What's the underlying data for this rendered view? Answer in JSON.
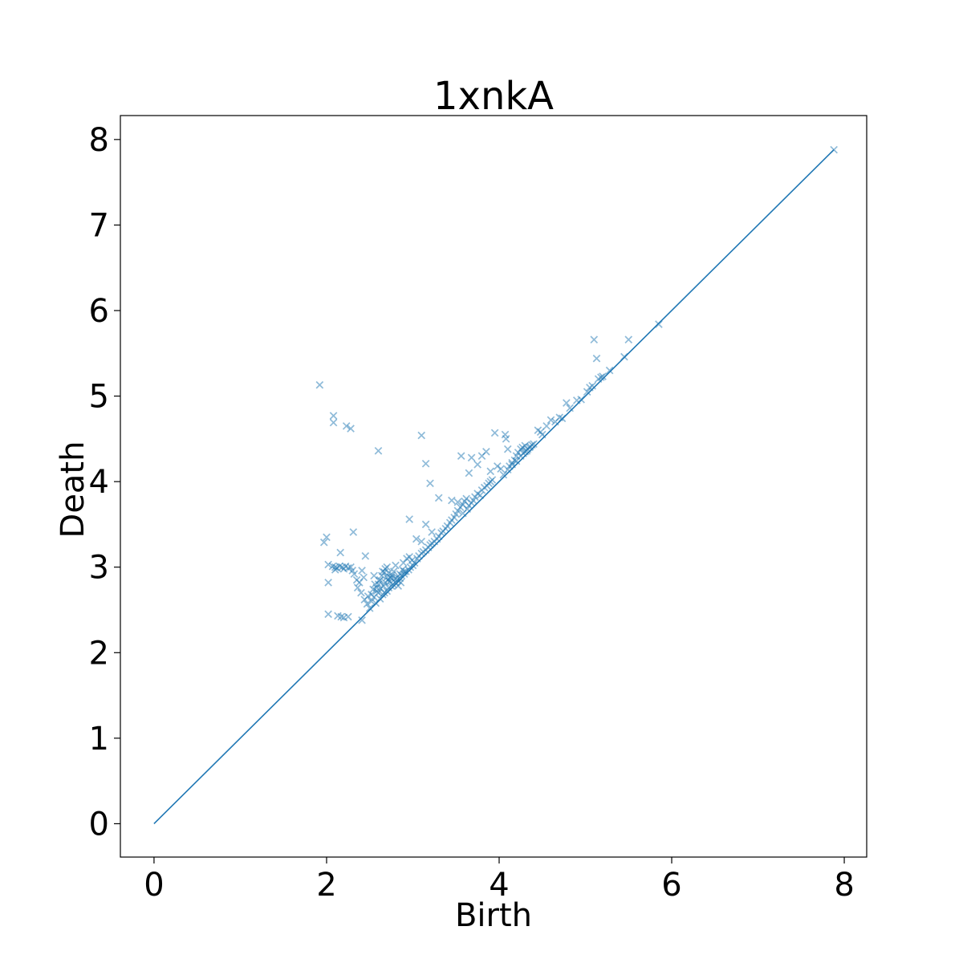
{
  "chart_data": {
    "type": "scatter",
    "title": "1xnkA",
    "xlabel": "Birth",
    "ylabel": "Death",
    "xlim": [
      -0.39,
      8.26
    ],
    "ylim": [
      -0.39,
      8.28
    ],
    "x_ticks": [
      0,
      2,
      4,
      6,
      8
    ],
    "y_ticks": [
      0,
      1,
      2,
      3,
      4,
      5,
      6,
      7,
      8
    ],
    "grid": false,
    "legend": "none",
    "colors": {
      "series": "#1f77b4",
      "axes": "#000000",
      "background": "#ffffff"
    },
    "marker": "x",
    "marker_alpha": 0.5,
    "diagonal": {
      "from": [
        0,
        0
      ],
      "to": [
        7.88,
        7.88
      ]
    },
    "points": [
      [
        1.92,
        5.13
      ],
      [
        2.08,
        4.77
      ],
      [
        2.08,
        4.69
      ],
      [
        2.23,
        4.65
      ],
      [
        2.28,
        4.62
      ],
      [
        2.6,
        4.36
      ],
      [
        2.0,
        3.35
      ],
      [
        1.97,
        3.29
      ],
      [
        2.31,
        3.41
      ],
      [
        2.16,
        3.17
      ],
      [
        2.45,
        3.13
      ],
      [
        2.02,
        3.03
      ],
      [
        2.07,
        3.01
      ],
      [
        2.1,
        3.0
      ],
      [
        2.12,
        2.99
      ],
      [
        2.15,
        3.01
      ],
      [
        2.18,
        3.0
      ],
      [
        2.2,
        2.98
      ],
      [
        2.22,
        3.01
      ],
      [
        2.25,
        2.99
      ],
      [
        2.28,
        3.0
      ],
      [
        2.3,
        2.96
      ],
      [
        2.1,
        2.97
      ],
      [
        2.32,
        2.92
      ],
      [
        2.35,
        2.85
      ],
      [
        2.38,
        2.82
      ],
      [
        2.36,
        2.76
      ],
      [
        2.4,
        2.7
      ],
      [
        2.44,
        2.62
      ],
      [
        2.47,
        2.57
      ],
      [
        2.41,
        2.96
      ],
      [
        2.43,
        2.88
      ],
      [
        2.02,
        2.82
      ],
      [
        2.02,
        2.45
      ],
      [
        2.13,
        2.43
      ],
      [
        2.17,
        2.42
      ],
      [
        2.2,
        2.41
      ],
      [
        2.25,
        2.42
      ],
      [
        2.41,
        2.38
      ],
      [
        2.5,
        2.52
      ],
      [
        2.52,
        2.6
      ],
      [
        2.55,
        2.65
      ],
      [
        2.58,
        2.72
      ],
      [
        2.6,
        2.8
      ],
      [
        2.62,
        2.85
      ],
      [
        2.55,
        2.9
      ],
      [
        2.65,
        2.95
      ],
      [
        2.68,
        2.98
      ],
      [
        2.7,
        3.0
      ],
      [
        2.72,
        2.93
      ],
      [
        2.75,
        2.87
      ],
      [
        2.78,
        2.95
      ],
      [
        2.8,
        3.02
      ],
      [
        2.82,
        2.88
      ],
      [
        2.85,
        2.92
      ],
      [
        2.88,
        2.97
      ],
      [
        2.9,
        2.95
      ],
      [
        2.57,
        2.58
      ],
      [
        2.62,
        2.63
      ],
      [
        2.65,
        2.68
      ],
      [
        2.67,
        2.7
      ],
      [
        2.7,
        2.72
      ],
      [
        2.72,
        2.76
      ],
      [
        2.75,
        2.78
      ],
      [
        2.77,
        2.8
      ],
      [
        2.8,
        2.82
      ],
      [
        2.82,
        2.85
      ],
      [
        2.85,
        2.87
      ],
      [
        2.87,
        2.9
      ],
      [
        2.9,
        2.92
      ],
      [
        2.92,
        2.95
      ],
      [
        2.95,
        2.97
      ],
      [
        2.97,
        3.0
      ],
      [
        3.0,
        3.02
      ],
      [
        3.02,
        3.05
      ],
      [
        2.6,
        2.7
      ],
      [
        2.63,
        2.75
      ],
      [
        2.66,
        2.78
      ],
      [
        2.68,
        2.82
      ],
      [
        2.71,
        2.85
      ],
      [
        2.74,
        2.88
      ],
      [
        2.58,
        2.76
      ],
      [
        2.61,
        2.84
      ],
      [
        2.64,
        2.9
      ],
      [
        2.67,
        2.94
      ],
      [
        2.7,
        2.88
      ],
      [
        2.73,
        2.83
      ],
      [
        2.76,
        2.91
      ],
      [
        2.79,
        2.86
      ],
      [
        2.83,
        2.78
      ],
      [
        2.86,
        2.82
      ],
      [
        2.89,
        3.05
      ],
      [
        2.93,
        3.1
      ],
      [
        2.96,
        3.12
      ],
      [
        2.99,
        3.08
      ],
      [
        2.52,
        2.68
      ],
      [
        2.54,
        2.74
      ],
      [
        2.56,
        2.8
      ],
      [
        2.48,
        2.66
      ],
      [
        3.05,
        3.1
      ],
      [
        3.07,
        3.13
      ],
      [
        3.1,
        3.16
      ],
      [
        3.12,
        3.18
      ],
      [
        3.15,
        3.2
      ],
      [
        3.18,
        3.23
      ],
      [
        3.2,
        3.26
      ],
      [
        3.22,
        3.28
      ],
      [
        3.25,
        3.3
      ],
      [
        3.28,
        3.33
      ],
      [
        3.3,
        3.36
      ],
      [
        3.33,
        3.4
      ],
      [
        3.35,
        3.42
      ],
      [
        3.38,
        3.45
      ],
      [
        3.4,
        3.48
      ],
      [
        3.43,
        3.52
      ],
      [
        3.45,
        3.55
      ],
      [
        3.48,
        3.58
      ],
      [
        3.04,
        3.33
      ],
      [
        3.1,
        3.3
      ],
      [
        3.15,
        3.5
      ],
      [
        3.22,
        3.41
      ],
      [
        2.96,
        3.56
      ],
      [
        3.1,
        4.54
      ],
      [
        3.15,
        4.21
      ],
      [
        3.2,
        3.98
      ],
      [
        3.3,
        3.81
      ],
      [
        3.5,
        3.62
      ],
      [
        3.52,
        3.66
      ],
      [
        3.55,
        3.7
      ],
      [
        3.58,
        3.73
      ],
      [
        3.6,
        3.77
      ],
      [
        3.62,
        3.8
      ],
      [
        3.65,
        3.72
      ],
      [
        3.68,
        3.75
      ],
      [
        3.7,
        3.78
      ],
      [
        3.72,
        3.82
      ],
      [
        3.75,
        3.86
      ],
      [
        3.78,
        3.84
      ],
      [
        3.8,
        3.9
      ],
      [
        3.83,
        3.93
      ],
      [
        3.86,
        3.95
      ],
      [
        3.88,
        3.98
      ],
      [
        3.9,
        4.0
      ],
      [
        3.92,
        4.02
      ],
      [
        3.45,
        3.78
      ],
      [
        3.52,
        3.76
      ],
      [
        3.58,
        3.63
      ],
      [
        3.63,
        3.68
      ],
      [
        3.56,
        4.3
      ],
      [
        3.65,
        4.1
      ],
      [
        3.68,
        4.28
      ],
      [
        3.75,
        4.2
      ],
      [
        3.8,
        4.3
      ],
      [
        3.85,
        4.35
      ],
      [
        3.9,
        4.12
      ],
      [
        3.95,
        4.57
      ],
      [
        3.98,
        4.18
      ],
      [
        4.02,
        4.15
      ],
      [
        4.07,
        4.55
      ],
      [
        4.08,
        4.5
      ],
      [
        4.1,
        4.38
      ],
      [
        4.15,
        4.2
      ],
      [
        4.18,
        4.25
      ],
      [
        4.2,
        4.3
      ],
      [
        4.22,
        4.34
      ],
      [
        4.25,
        4.38
      ],
      [
        4.27,
        4.4
      ],
      [
        4.3,
        4.42
      ],
      [
        4.32,
        4.36
      ],
      [
        4.35,
        4.4
      ],
      [
        4.05,
        4.08
      ],
      [
        4.1,
        4.14
      ],
      [
        4.12,
        4.18
      ],
      [
        4.15,
        4.22
      ],
      [
        4.2,
        4.24
      ],
      [
        4.25,
        4.3
      ],
      [
        4.28,
        4.33
      ],
      [
        4.3,
        4.35
      ],
      [
        4.33,
        4.38
      ],
      [
        4.36,
        4.41
      ],
      [
        4.38,
        4.43
      ],
      [
        4.4,
        4.44
      ],
      [
        4.45,
        4.6
      ],
      [
        4.48,
        4.58
      ],
      [
        4.5,
        4.55
      ],
      [
        4.55,
        4.65
      ],
      [
        4.6,
        4.72
      ],
      [
        4.65,
        4.7
      ],
      [
        4.7,
        4.75
      ],
      [
        4.73,
        4.74
      ],
      [
        4.78,
        4.92
      ],
      [
        4.82,
        4.86
      ],
      [
        4.9,
        4.95
      ],
      [
        4.95,
        4.96
      ],
      [
        5.02,
        5.05
      ],
      [
        5.05,
        5.1
      ],
      [
        5.08,
        5.12
      ],
      [
        5.1,
        5.66
      ],
      [
        5.13,
        5.44
      ],
      [
        5.15,
        5.2
      ],
      [
        5.18,
        5.22
      ],
      [
        5.2,
        5.23
      ],
      [
        5.28,
        5.3
      ],
      [
        5.45,
        5.46
      ],
      [
        5.5,
        5.66
      ],
      [
        5.85,
        5.84
      ],
      [
        7.88,
        7.88
      ]
    ]
  }
}
